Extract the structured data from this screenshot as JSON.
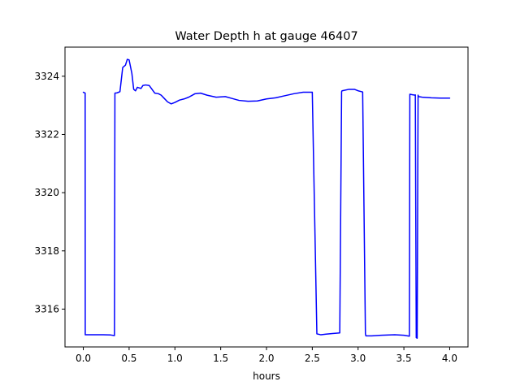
{
  "chart_data": {
    "type": "line",
    "title": "Water Depth h at gauge 46407",
    "xlabel": "hours",
    "ylabel": "",
    "xlim": [
      -0.2,
      4.2
    ],
    "ylim": [
      3314.7,
      3325.0
    ],
    "xticks": [
      0.0,
      0.5,
      1.0,
      1.5,
      2.0,
      2.5,
      3.0,
      3.5,
      4.0
    ],
    "xtick_labels": [
      "0.0",
      "0.5",
      "1.0",
      "1.5",
      "2.0",
      "2.5",
      "3.0",
      "3.5",
      "4.0"
    ],
    "yticks": [
      3316,
      3318,
      3320,
      3322,
      3324
    ],
    "ytick_labels": [
      "3316",
      "3318",
      "3320",
      "3322",
      "3324"
    ],
    "grid": false,
    "series": [
      {
        "color": "#0000ff",
        "x": [
          0.0,
          0.02,
          0.021,
          0.1,
          0.2,
          0.3,
          0.34,
          0.345,
          0.37,
          0.4,
          0.43,
          0.46,
          0.48,
          0.5,
          0.53,
          0.55,
          0.57,
          0.59,
          0.61,
          0.63,
          0.65,
          0.68,
          0.72,
          0.75,
          0.78,
          0.82,
          0.85,
          0.88,
          0.92,
          0.96,
          1.0,
          1.05,
          1.1,
          1.15,
          1.18,
          1.22,
          1.28,
          1.35,
          1.45,
          1.55,
          1.62,
          1.7,
          1.8,
          1.9,
          2.0,
          2.1,
          2.2,
          2.3,
          2.4,
          2.5,
          2.55,
          2.59,
          2.595,
          2.65,
          2.72,
          2.8,
          2.82,
          2.825,
          2.9,
          2.96,
          3.0,
          3.05,
          3.08,
          3.085,
          3.15,
          3.25,
          3.4,
          3.5,
          3.56,
          3.565,
          3.62,
          3.625,
          3.635,
          3.645,
          3.655,
          3.66,
          3.7,
          3.8,
          3.9,
          4.0
        ],
        "y": [
          3323.45,
          3323.42,
          3315.12,
          3315.12,
          3315.12,
          3315.11,
          3315.09,
          3323.42,
          3323.43,
          3323.47,
          3324.3,
          3324.38,
          3324.58,
          3324.56,
          3324.1,
          3323.55,
          3323.5,
          3323.62,
          3323.6,
          3323.58,
          3323.68,
          3323.7,
          3323.68,
          3323.55,
          3323.42,
          3323.4,
          3323.35,
          3323.25,
          3323.12,
          3323.05,
          3323.1,
          3323.18,
          3323.22,
          3323.28,
          3323.33,
          3323.4,
          3323.42,
          3323.35,
          3323.28,
          3323.3,
          3323.24,
          3323.17,
          3323.14,
          3323.15,
          3323.22,
          3323.26,
          3323.33,
          3323.4,
          3323.45,
          3323.45,
          3315.15,
          3315.12,
          3315.12,
          3315.14,
          3315.16,
          3315.18,
          3323.47,
          3323.5,
          3323.55,
          3323.55,
          3323.5,
          3323.46,
          3315.15,
          3315.08,
          3315.08,
          3315.1,
          3315.12,
          3315.1,
          3315.07,
          3323.38,
          3323.35,
          3323.36,
          3315.02,
          3315.0,
          3323.35,
          3323.3,
          3323.28,
          3323.26,
          3323.25,
          3323.25
        ]
      }
    ]
  }
}
